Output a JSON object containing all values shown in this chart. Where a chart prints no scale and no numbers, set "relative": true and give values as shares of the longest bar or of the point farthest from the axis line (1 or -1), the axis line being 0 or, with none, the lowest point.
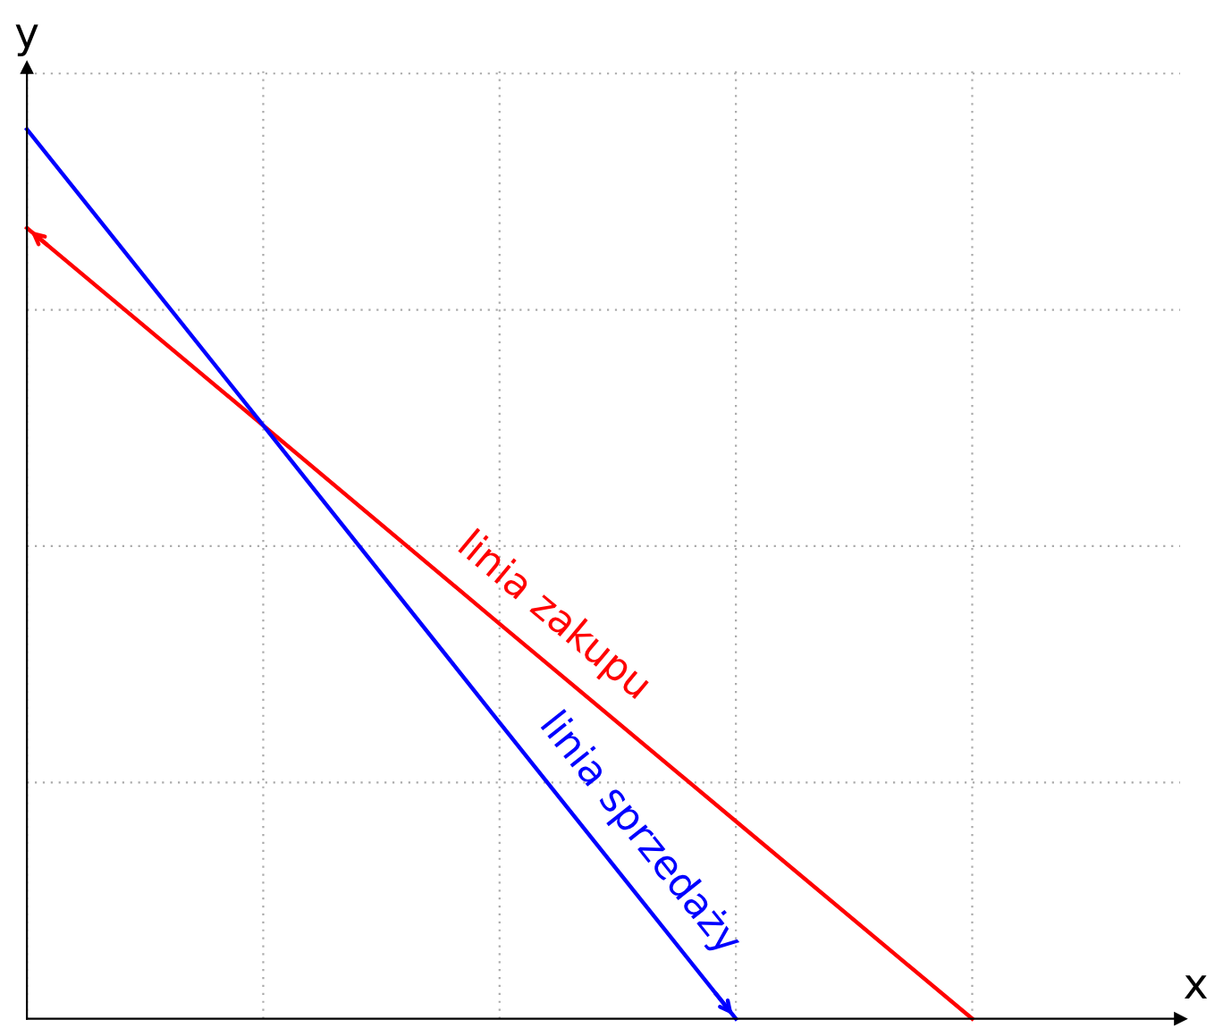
{
  "chart_data": {
    "type": "line",
    "relative": true,
    "xlabel": "x",
    "ylabel": "y",
    "categories": [
      null,
      null,
      null,
      null,
      null
    ],
    "grid": true,
    "series": [
      {
        "name": "linia zakupu",
        "color": "#ff0000",
        "values": [
          0.889,
          0.667,
          0.444,
          0.222,
          0
        ]
      },
      {
        "name": "linia sprzedaży",
        "color": "#0000ff",
        "values": [
          1,
          0.667,
          0.333,
          0,
          null
        ]
      }
    ]
  }
}
